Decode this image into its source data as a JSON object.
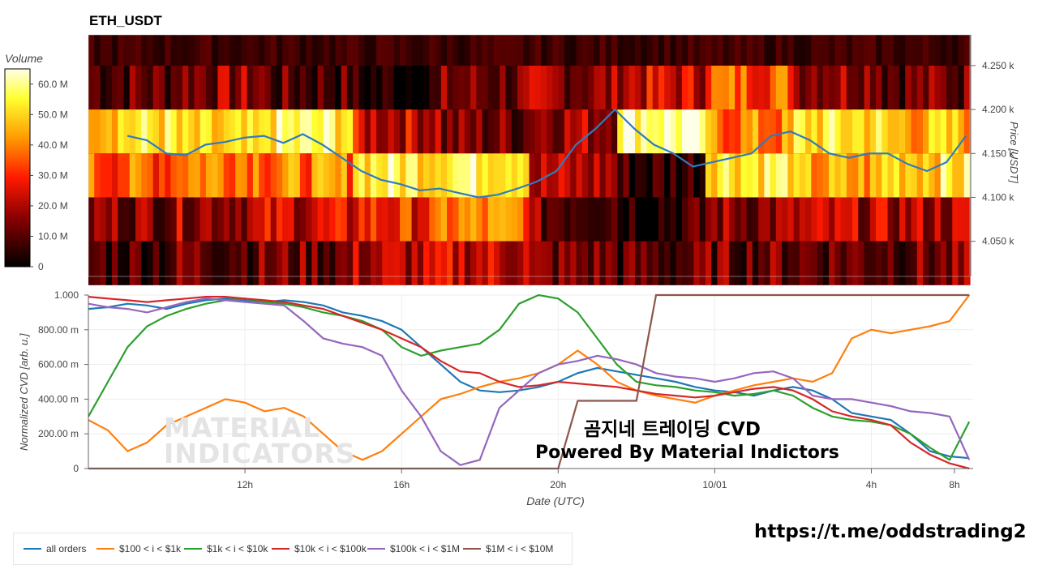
{
  "title": "ETH_USDT",
  "colorbar": {
    "title": "Volume",
    "ticks": [
      {
        "label": "60.0 M",
        "value": 60
      },
      {
        "label": "50.0 M",
        "value": 50
      },
      {
        "label": "40.0 M",
        "value": 40
      },
      {
        "label": "30.0 M",
        "value": 30
      },
      {
        "label": "20.0 M",
        "value": 20
      },
      {
        "label": "10.0 M",
        "value": 10
      },
      {
        "label": "0",
        "value": 0
      }
    ]
  },
  "chart_data": [
    {
      "type": "heatmap",
      "title": "ETH_USDT",
      "ylabel": "Price [USDT]",
      "ylim": [
        4010,
        4285
      ],
      "yticks": [
        {
          "label": "4.250 k",
          "value": 4250
        },
        {
          "label": "4.200 k",
          "value": 4200
        },
        {
          "label": "4.150 k",
          "value": 4150
        },
        {
          "label": "4.100 k",
          "value": 4100
        },
        {
          "label": "4.050 k",
          "value": 4050
        }
      ],
      "price_bands": [
        4225,
        4175,
        4125,
        4075,
        4025
      ],
      "band_intensity": [
        [
          0.18,
          0.25,
          0.15,
          0.05,
          0.2,
          0.25,
          0.35,
          0.55,
          0.3,
          0.2
        ],
        [
          0.8,
          0.7,
          0.85,
          0.35,
          0.2,
          0.3,
          0.95,
          0.6,
          0.8,
          0.7
        ],
        [
          0.55,
          0.65,
          0.6,
          0.85,
          0.9,
          0.3,
          0.1,
          0.85,
          0.65,
          0.8
        ],
        [
          0.25,
          0.3,
          0.35,
          0.45,
          0.6,
          0.2,
          0.1,
          0.25,
          0.3,
          0.3
        ],
        [
          0.15,
          0.2,
          0.2,
          0.3,
          0.35,
          0.2,
          0.15,
          0.2,
          0.2,
          0.2
        ]
      ],
      "price_series": {
        "color": "#2f7bbf",
        "x_hours": [
          9.0,
          9.5,
          10.0,
          10.5,
          11.0,
          11.5,
          12.0,
          12.5,
          13.0,
          13.5,
          14.0,
          14.5,
          15.0,
          15.5,
          16.0,
          16.5,
          17.0,
          17.5,
          18.0,
          18.5,
          19.0,
          19.5,
          20.0,
          20.5,
          21.0,
          21.5,
          22.0,
          22.5,
          23.0,
          23.5,
          24.0,
          24.5,
          25.0,
          25.5,
          26.0,
          26.5,
          27.0,
          27.5,
          28.0,
          28.5,
          29.0,
          29.5,
          30.0,
          30.5
        ],
        "y": [
          4170,
          4165,
          4150,
          4148,
          4160,
          4163,
          4168,
          4170,
          4162,
          4172,
          4160,
          4145,
          4130,
          4120,
          4115,
          4108,
          4110,
          4105,
          4100,
          4103,
          4110,
          4118,
          4130,
          4160,
          4178,
          4200,
          4178,
          4160,
          4150,
          4135,
          4140,
          4145,
          4150,
          4170,
          4175,
          4165,
          4150,
          4145,
          4150,
          4150,
          4138,
          4130,
          4140,
          4170
        ]
      }
    },
    {
      "type": "line",
      "xlabel": "Date (UTC)",
      "ylabel": "Normalized CVD [arb. u.]",
      "ylim": [
        0,
        1
      ],
      "xlim_hours": [
        8.0,
        30.6
      ],
      "xticks": [
        {
          "label": "12h",
          "value": 12
        },
        {
          "label": "16h",
          "value": 16
        },
        {
          "label": "20h",
          "value": 20
        },
        {
          "label": "10/01",
          "value": 24
        },
        {
          "label": "4h",
          "value": 28
        },
        {
          "label": "8h",
          "value": 32
        }
      ],
      "yticks": [
        {
          "label": "1.000",
          "value": 1.0
        },
        {
          "label": "800.00 m",
          "value": 0.8
        },
        {
          "label": "600.00 m",
          "value": 0.6
        },
        {
          "label": "400.00 m",
          "value": 0.4
        },
        {
          "label": "200.00 m",
          "value": 0.2
        },
        {
          "label": "0",
          "value": 0
        }
      ],
      "x": [
        8.0,
        8.5,
        9.0,
        9.5,
        10.0,
        10.5,
        11.0,
        11.5,
        12.0,
        12.5,
        13.0,
        13.5,
        14.0,
        14.5,
        15.0,
        15.5,
        16.0,
        16.5,
        17.0,
        17.5,
        18.0,
        18.5,
        19.0,
        19.5,
        20.0,
        20.5,
        21.0,
        21.5,
        22.0,
        22.5,
        23.0,
        23.5,
        24.0,
        24.5,
        25.0,
        25.5,
        26.0,
        26.5,
        27.0,
        27.5,
        28.0,
        28.5,
        29.0,
        29.5,
        30.0,
        30.5
      ],
      "series": [
        {
          "name": "all orders",
          "color": "#1f77b4",
          "values": [
            0.92,
            0.93,
            0.95,
            0.94,
            0.92,
            0.95,
            0.97,
            0.98,
            0.97,
            0.96,
            0.97,
            0.96,
            0.94,
            0.9,
            0.88,
            0.85,
            0.8,
            0.7,
            0.6,
            0.5,
            0.45,
            0.44,
            0.45,
            0.47,
            0.5,
            0.55,
            0.58,
            0.56,
            0.54,
            0.52,
            0.5,
            0.47,
            0.45,
            0.44,
            0.42,
            0.45,
            0.47,
            0.45,
            0.4,
            0.32,
            0.3,
            0.28,
            0.2,
            0.1,
            0.07,
            0.06
          ]
        },
        {
          "name": "$100 < i < $1k",
          "color": "#ff7f0e",
          "values": [
            0.28,
            0.22,
            0.1,
            0.15,
            0.25,
            0.3,
            0.35,
            0.4,
            0.38,
            0.33,
            0.35,
            0.3,
            0.2,
            0.1,
            0.05,
            0.1,
            0.2,
            0.3,
            0.4,
            0.43,
            0.47,
            0.5,
            0.52,
            0.55,
            0.6,
            0.68,
            0.6,
            0.5,
            0.45,
            0.42,
            0.4,
            0.38,
            0.42,
            0.45,
            0.48,
            0.5,
            0.52,
            0.5,
            0.55,
            0.75,
            0.8,
            0.78,
            0.8,
            0.82,
            0.85,
            1.0
          ]
        },
        {
          "name": "$1k < i < $10k",
          "color": "#2ca02c",
          "values": [
            0.3,
            0.5,
            0.7,
            0.82,
            0.88,
            0.92,
            0.95,
            0.97,
            0.98,
            0.96,
            0.95,
            0.93,
            0.9,
            0.88,
            0.85,
            0.8,
            0.7,
            0.65,
            0.68,
            0.7,
            0.72,
            0.8,
            0.95,
            1.0,
            0.98,
            0.9,
            0.75,
            0.6,
            0.5,
            0.48,
            0.47,
            0.45,
            0.44,
            0.42,
            0.43,
            0.45,
            0.42,
            0.35,
            0.3,
            0.28,
            0.27,
            0.25,
            0.2,
            0.12,
            0.05,
            0.27
          ]
        },
        {
          "name": "$10k < i < $100k",
          "color": "#d62728",
          "values": [
            0.99,
            0.98,
            0.97,
            0.96,
            0.97,
            0.98,
            0.99,
            0.99,
            0.98,
            0.97,
            0.96,
            0.94,
            0.92,
            0.88,
            0.84,
            0.8,
            0.75,
            0.7,
            0.62,
            0.56,
            0.55,
            0.5,
            0.47,
            0.48,
            0.5,
            0.49,
            0.48,
            0.47,
            0.45,
            0.43,
            0.42,
            0.41,
            0.42,
            0.44,
            0.46,
            0.47,
            0.45,
            0.4,
            0.33,
            0.3,
            0.28,
            0.25,
            0.15,
            0.08,
            0.03,
            0.0
          ]
        },
        {
          "name": "$100k < i < $1M",
          "color": "#9467bd",
          "values": [
            0.95,
            0.93,
            0.92,
            0.9,
            0.93,
            0.96,
            0.98,
            0.97,
            0.96,
            0.95,
            0.94,
            0.85,
            0.75,
            0.72,
            0.7,
            0.65,
            0.45,
            0.3,
            0.1,
            0.02,
            0.05,
            0.35,
            0.45,
            0.55,
            0.6,
            0.62,
            0.65,
            0.63,
            0.6,
            0.55,
            0.53,
            0.52,
            0.5,
            0.52,
            0.55,
            0.56,
            0.52,
            0.42,
            0.4,
            0.4,
            0.38,
            0.36,
            0.33,
            0.32,
            0.3,
            0.05
          ]
        },
        {
          "name": "$1M < i < $10M",
          "color": "#8c564b",
          "values": [
            0.0,
            0.0,
            0.0,
            0.0,
            0.0,
            0.0,
            0.0,
            0.0,
            0.0,
            0.0,
            0.0,
            0.0,
            0.0,
            0.0,
            0.0,
            0.0,
            0.0,
            0.0,
            0.0,
            0.0,
            0.0,
            0.0,
            0.0,
            0.0,
            0.0,
            0.39,
            0.39,
            0.39,
            0.39,
            1.0,
            1.0,
            1.0,
            1.0,
            1.0,
            1.0,
            1.0,
            1.0,
            1.0,
            1.0,
            1.0,
            1.0,
            1.0,
            1.0,
            1.0,
            1.0,
            1.0
          ]
        }
      ]
    }
  ],
  "annotation_korean": "곰지네 트레이딩 CVD",
  "annotation_powered": "Powered By Material Indictors",
  "watermark_line1": "MATERIAL",
  "watermark_line2": "INDICATORS",
  "link": "https://t.me/oddstrading2"
}
